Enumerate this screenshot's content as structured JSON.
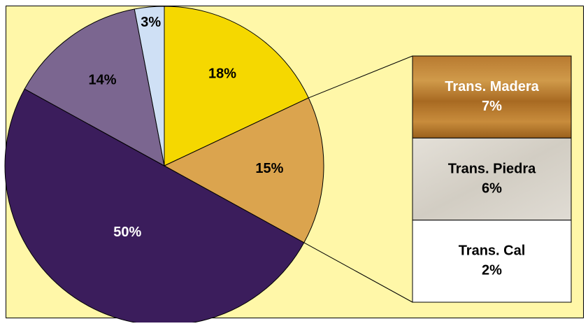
{
  "chart_data": {
    "type": "pie",
    "values": [
      18,
      15,
      50,
      14,
      3
    ],
    "value_labels": [
      "18%",
      "15%",
      "50%",
      "14%",
      "3%"
    ],
    "colors": [
      "#f5d800",
      "#dba44e",
      "#3b1d5c",
      "#7b6690",
      "#cfe0f5"
    ],
    "breakdown": {
      "type": "bar",
      "of_slice": 1,
      "categories": [
        "Trans. Madera",
        "Trans. Piedra",
        "Trans. Cal"
      ],
      "values": [
        7,
        6,
        2
      ],
      "value_labels": [
        "7%",
        "6%",
        "2%"
      ]
    }
  }
}
